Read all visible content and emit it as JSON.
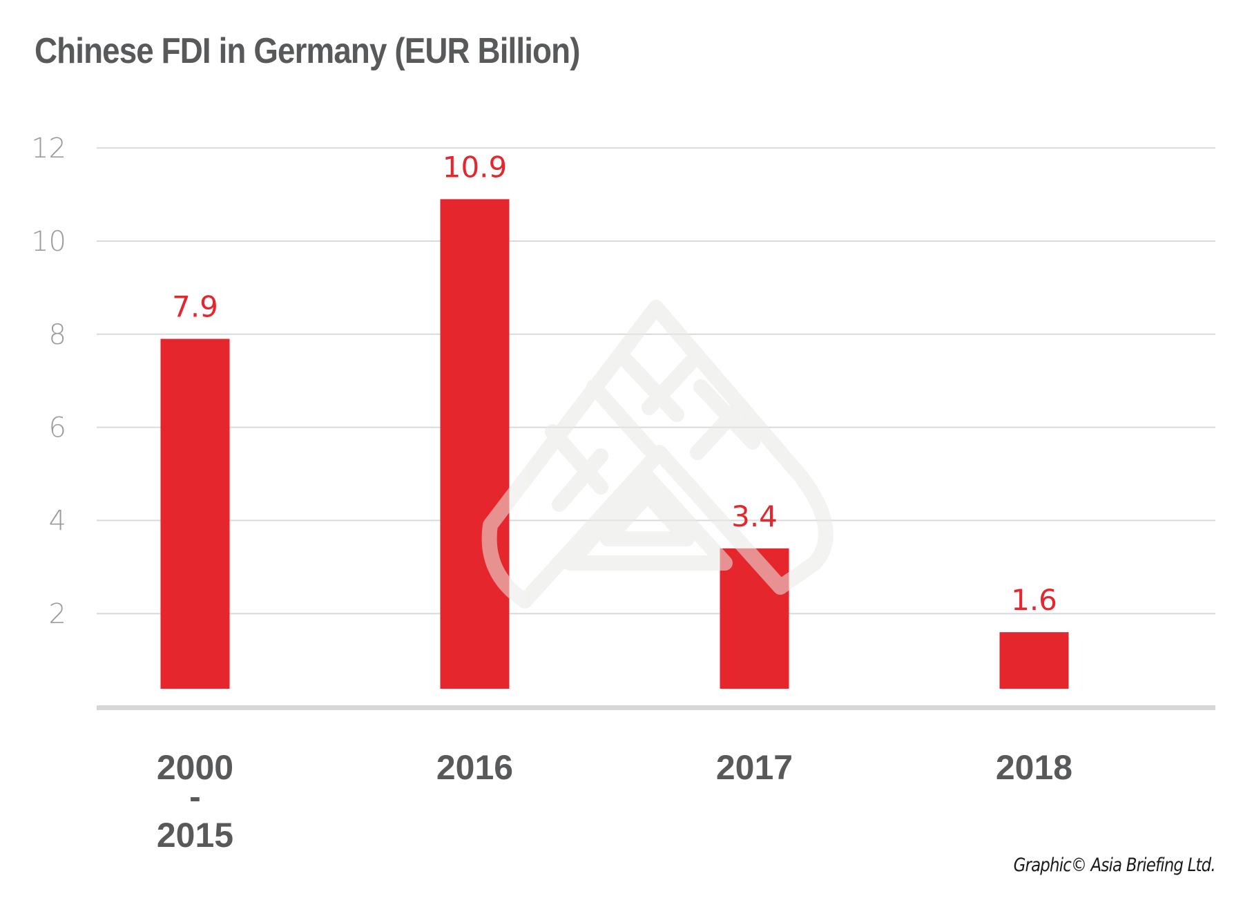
{
  "chart_data": {
    "type": "bar",
    "title": "Chinese FDI in Germany (EUR Billion)",
    "xlabel": "",
    "ylabel": "",
    "categories": [
      "2000 - 2015",
      "2016",
      "2017",
      "2018"
    ],
    "category_lines": [
      [
        "2000",
        "-",
        "2015"
      ],
      [
        "2016"
      ],
      [
        "2017"
      ],
      [
        "2018"
      ]
    ],
    "values": [
      7.9,
      10.9,
      3.4,
      1.6
    ],
    "data_labels": [
      "7.9",
      "10.9",
      "3.4",
      "1.6"
    ],
    "ylim": [
      0,
      12
    ],
    "yticks": [
      2,
      4,
      6,
      8,
      10,
      12
    ],
    "grid": true,
    "legend": "none",
    "bar_color": "#e5262c",
    "grid_color": "#d9d9d9",
    "axis_color": "#d6d6d6"
  },
  "credit": "Graphic© Asia Briefing Ltd.",
  "watermark_icon": "asia-briefing-logo-icon"
}
